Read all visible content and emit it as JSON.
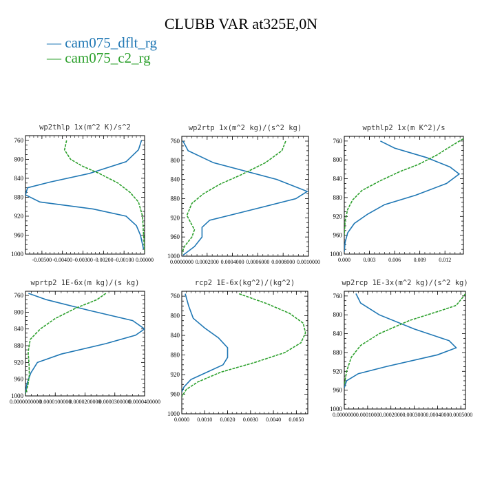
{
  "title": "CLUBB VAR at325E,0N",
  "legend": [
    {
      "label": "cam075_dflt_rg",
      "color": "#1f77b4"
    },
    {
      "label": "cam075_c2_rg",
      "color": "#2ca02c"
    }
  ],
  "chart_data": [
    {
      "type": "line",
      "title": "wp2thlp  1x(m^2 K)/s^2",
      "ylim": [
        1000,
        750
      ],
      "y_ticks": [
        760,
        800,
        840,
        880,
        920,
        960,
        1000
      ],
      "xlim": [
        -0.0058,
        0.0
      ],
      "x_ticks": [
        -0.005,
        -0.004,
        -0.003,
        -0.002,
        -0.001,
        0.0
      ],
      "x_tick_labels": [
        "-0.00500",
        "-0.00400",
        "-0.00300",
        "-0.00200",
        "-0.00100",
        "0.00000"
      ],
      "series": [
        {
          "name": "cam075_dflt_rg",
          "x": [
            -0.00015,
            -0.0003,
            -0.0009,
            -0.0027,
            -0.0046,
            -0.0057,
            -0.0058,
            -0.0051,
            -0.0025,
            -0.0009,
            -0.0004,
            -0.0002,
            -5e-05
          ],
          "y": [
            760,
            780,
            805,
            830,
            848,
            860,
            875,
            890,
            905,
            920,
            940,
            960,
            990
          ]
        },
        {
          "name": "cam075_c2_rg",
          "x": [
            -0.0038,
            -0.0039,
            -0.0036,
            -0.003,
            -0.0022,
            -0.0013,
            -0.0007,
            -0.0003,
            -0.0001,
            -5e-05,
            0.0
          ],
          "y": [
            760,
            780,
            800,
            815,
            830,
            850,
            870,
            890,
            920,
            960,
            995
          ]
        }
      ]
    },
    {
      "type": "line",
      "title": "wp2rtp  1x(m^2 kg)/(s^2 kg)",
      "ylim": [
        1000,
        750
      ],
      "y_ticks": [
        760,
        800,
        840,
        880,
        920,
        960,
        1000
      ],
      "xlim": [
        0.0,
        0.001
      ],
      "x_ticks": [
        0.0,
        0.0002,
        0.0004,
        0.0006,
        0.0008,
        0.001
      ],
      "x_tick_labels": [
        "0.0000000",
        "0.0002000",
        "0.0004000",
        "0.0006000",
        "0.0008000",
        "0.0010000"
      ],
      "series": [
        {
          "name": "cam075_dflt_rg",
          "x": [
            1e-05,
            5e-05,
            0.00025,
            0.00075,
            0.00099,
            0.0009,
            0.00045,
            0.00022,
            0.00016,
            0.00016,
            0.0001,
            1e-05
          ],
          "y": [
            760,
            780,
            805,
            840,
            865,
            880,
            910,
            925,
            940,
            960,
            980,
            998
          ]
        },
        {
          "name": "cam075_c2_rg",
          "x": [
            0.00082,
            0.00079,
            0.00066,
            0.00047,
            0.0003,
            0.00017,
            8e-05,
            4e-05,
            0.0001,
            8e-05,
            2e-05,
            0.0
          ],
          "y": [
            760,
            780,
            805,
            830,
            850,
            870,
            890,
            915,
            945,
            960,
            980,
            995
          ]
        }
      ]
    },
    {
      "type": "line",
      "title": "wpthlp2  1x(m K^2)/s",
      "ylim": [
        1000,
        750
      ],
      "y_ticks": [
        760,
        800,
        840,
        880,
        920,
        960,
        1000
      ],
      "xlim": [
        0.0,
        0.0142
      ],
      "x_ticks": [
        0.0,
        0.003,
        0.006,
        0.009,
        0.012
      ],
      "x_tick_labels": [
        "0.000",
        "0.003",
        "0.006",
        "0.009",
        "0.012"
      ],
      "series": [
        {
          "name": "cam075_dflt_rg",
          "x": [
            0.0043,
            0.006,
            0.0098,
            0.0126,
            0.0137,
            0.0122,
            0.0085,
            0.0048,
            0.0028,
            0.0012,
            0.0004,
            0.0001,
            0.0
          ],
          "y": [
            760,
            775,
            795,
            815,
            830,
            850,
            875,
            895,
            915,
            935,
            955,
            975,
            995
          ]
        },
        {
          "name": "cam075_c2_rg",
          "x": [
            0.0142,
            0.0128,
            0.011,
            0.0088,
            0.0066,
            0.0042,
            0.0021,
            0.001,
            0.0004,
            0.0001,
            0.0
          ],
          "y": [
            755,
            770,
            790,
            810,
            825,
            845,
            865,
            885,
            905,
            930,
            960
          ]
        }
      ]
    },
    {
      "type": "line",
      "title": "wprtp2  1E-6x(m kg)/(s kg)",
      "ylim": [
        1000,
        750
      ],
      "y_ticks": [
        760,
        800,
        840,
        880,
        920,
        960,
        1000
      ],
      "xlim": [
        0.0,
        4e-05
      ],
      "x_ticks": [
        0.0,
        1e-05,
        2e-05,
        3e-05,
        4e-05
      ],
      "x_tick_labels": [
        "0.0000000000",
        "0.0000100000",
        "0.0000200000",
        "0.0000300000",
        "0.0000400000"
      ],
      "series": [
        {
          "name": "cam075_dflt_rg",
          "x": [
            1e-06,
            7e-06,
            2.1e-05,
            3.6e-05,
            4e-05,
            3.7e-05,
            2.7e-05,
            1.2e-05,
            4e-06,
            1.8e-06,
            5e-07,
            0.0
          ],
          "y": [
            755,
            770,
            795,
            820,
            840,
            855,
            875,
            900,
            920,
            945,
            970,
            995
          ]
        },
        {
          "name": "cam075_c2_rg",
          "x": [
            2.7e-05,
            2.4e-05,
            1.7e-05,
            1e-05,
            5e-06,
            1.6e-06,
            9e-07,
            1.2e-06,
            1.3e-06,
            8e-07,
            0.0
          ],
          "y": [
            755,
            770,
            790,
            815,
            840,
            865,
            895,
            925,
            950,
            975,
            995
          ]
        }
      ]
    },
    {
      "type": "line",
      "title": "rcp2  1E-6x(kg^2)/(kg^2)",
      "ylim": [
        1000,
        750
      ],
      "y_ticks": [
        760,
        800,
        840,
        880,
        920,
        960,
        1000
      ],
      "xlim": [
        0.0,
        0.0055
      ],
      "x_ticks": [
        0.0,
        0.001,
        0.002,
        0.003,
        0.004,
        0.005
      ],
      "x_tick_labels": [
        "0.0000",
        "0.0010",
        "0.0020",
        "0.0030",
        "0.0040",
        "0.0050"
      ],
      "series": [
        {
          "name": "cam075_dflt_rg",
          "x": [
            0.00015,
            0.0003,
            0.0005,
            0.001,
            0.0016,
            0.002,
            0.002,
            0.0018,
            0.0011,
            0.0004,
            0.0001,
            0.0
          ],
          "y": [
            755,
            780,
            805,
            825,
            845,
            865,
            885,
            900,
            915,
            930,
            945,
            955
          ]
        },
        {
          "name": "cam075_c2_rg",
          "x": [
            0.0025,
            0.0037,
            0.0047,
            0.0053,
            0.0054,
            0.0052,
            0.0045,
            0.0032,
            0.0017,
            0.0007,
            0.0002,
            0.0
          ],
          "y": [
            755,
            775,
            795,
            815,
            835,
            855,
            875,
            895,
            915,
            935,
            950,
            965
          ]
        }
      ]
    },
    {
      "type": "line",
      "title": "wp2rcp  1E-3x(m^2 kg)/(s^2 kg)",
      "ylim": [
        1000,
        750
      ],
      "y_ticks": [
        760,
        800,
        840,
        880,
        920,
        960,
        1000
      ],
      "xlim": [
        0.0,
        0.00052
      ],
      "x_ticks": [
        0.0,
        0.0001,
        0.0002,
        0.0003,
        0.0004,
        0.0005
      ],
      "x_tick_labels": [
        "0.0000000",
        "0.0001000",
        "0.0002000",
        "0.0003000",
        "0.0004000",
        "0.0005000"
      ],
      "series": [
        {
          "name": "cam075_dflt_rg",
          "x": [
            5e-05,
            7e-05,
            0.00015,
            0.0003,
            0.00045,
            0.00048,
            0.0004,
            0.00018,
            6e-05,
            1e-05,
            0.0
          ],
          "y": [
            755,
            775,
            800,
            830,
            855,
            870,
            885,
            910,
            925,
            940,
            955
          ]
        },
        {
          "name": "cam075_c2_rg",
          "x": [
            0.00052,
            0.00051,
            0.00048,
            0.00042,
            0.00028,
            0.00015,
            7e-05,
            3e-05,
            1e-05,
            0.0
          ],
          "y": [
            755,
            762,
            780,
            790,
            812,
            840,
            865,
            890,
            920,
            950
          ]
        }
      ]
    }
  ]
}
